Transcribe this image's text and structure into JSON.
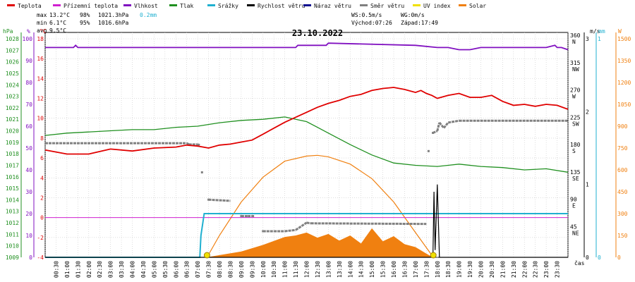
{
  "legend": [
    {
      "label": "Teplota",
      "color": "#e00000"
    },
    {
      "label": "Přízemní teplota",
      "color": "#d020d0"
    },
    {
      "label": "Vlhkost",
      "color": "#8010c0"
    },
    {
      "label": "Tlak",
      "color": "#209020"
    },
    {
      "label": "Srážky",
      "color": "#20b0d0"
    },
    {
      "label": "Rychlost větru",
      "color": "#000000"
    },
    {
      "label": "Náraz větru",
      "color": "#101090"
    },
    {
      "label": "Směr větru",
      "color": "#808080"
    },
    {
      "label": "UV index",
      "color": "#f0e000"
    },
    {
      "label": "Solar",
      "color": "#f08010"
    }
  ],
  "stats": {
    "max": {
      "label": "max",
      "temp": "13.2°C",
      "hum": "98%",
      "press": "1021.3hPa",
      "rain": "0.2mm"
    },
    "min": {
      "label": "min",
      "temp": "6.1°C",
      "hum": "95%",
      "press": "1016.6hPa"
    },
    "avg": {
      "label": "avg",
      "temp": "9.5°C"
    }
  },
  "wind_info": {
    "ws": "WS:0.5m/s",
    "wg": "WG:0m/s",
    "sunrise": "Východ:07:26",
    "sunset": "Západ:17:49"
  },
  "date": "23.10.2022",
  "axes": {
    "hpa_title": "hPa",
    "pct_title": "%",
    "c_title": "°C",
    "ms_title": "m/s",
    "mm_title": "mm",
    "w_title": "W",
    "cas_label": "čas",
    "hpa_ticks": [
      "1028",
      "1027",
      "1026",
      "1025",
      "1024",
      "1023",
      "1022",
      "1021",
      "1020",
      "1019",
      "1018",
      "1017",
      "1016",
      "1015",
      "1014",
      "1013",
      "1012",
      "1011",
      "1010",
      "1009"
    ],
    "pct_ticks": [
      "100",
      "90",
      "80",
      "70",
      "60",
      "50",
      "40",
      "30",
      "20",
      "10",
      "0"
    ],
    "c_ticks": [
      "18",
      "16",
      "14",
      "12",
      "10",
      "8",
      "6",
      "4",
      "2",
      "0",
      "-2",
      "-4"
    ],
    "dir_ticks": [
      {
        "deg": 360,
        "label": "360",
        "dir": "N"
      },
      {
        "deg": 315,
        "label": "315",
        "dir": "NW"
      },
      {
        "deg": 270,
        "label": "270",
        "dir": "W"
      },
      {
        "deg": 225,
        "label": "225",
        "dir": "SW"
      },
      {
        "deg": 180,
        "label": "180",
        "dir": "S"
      },
      {
        "deg": 135,
        "label": "135",
        "dir": "SE"
      },
      {
        "deg": 90,
        "label": "90",
        "dir": "E"
      },
      {
        "deg": 45,
        "label": "45",
        "dir": "NE"
      }
    ],
    "ms_ticks": [
      "3",
      "2",
      "1",
      "0"
    ],
    "mm_ticks": [
      "1",
      "0"
    ],
    "w_ticks": [
      "1500",
      "1350",
      "1200",
      "1050",
      "900",
      "750",
      "600",
      "450",
      "300",
      "150",
      "0"
    ],
    "time_ticks": [
      "00:30",
      "01:00",
      "01:30",
      "02:00",
      "02:30",
      "03:00",
      "03:30",
      "04:00",
      "04:30",
      "05:00",
      "05:30",
      "06:00",
      "06:30",
      "07:00",
      "07:30",
      "08:00",
      "08:30",
      "09:00",
      "09:30",
      "10:00",
      "10:30",
      "11:00",
      "11:30",
      "12:00",
      "12:30",
      "13:00",
      "13:30",
      "14:00",
      "14:30",
      "15:00",
      "15:30",
      "16:00",
      "16:30",
      "17:00",
      "17:30",
      "18:00",
      "18:30",
      "19:00",
      "19:30",
      "20:00",
      "20:30",
      "21:00",
      "21:30",
      "22:00",
      "22:30",
      "23:00",
      "23:30"
    ]
  },
  "chart_data": {
    "type": "line",
    "title": "23.10.2022",
    "x_unit": "hour of day",
    "xlim": [
      0,
      24
    ],
    "series": [
      {
        "name": "Teplota",
        "unit": "°C",
        "color": "#e00000",
        "x": [
          0,
          1,
          2,
          3,
          4,
          5,
          6,
          6.5,
          7,
          7.5,
          8,
          8.5,
          9,
          9.5,
          10,
          10.5,
          11,
          11.5,
          12,
          12.5,
          13,
          13.5,
          14,
          14.5,
          15,
          15.5,
          16,
          16.5,
          17,
          17.25,
          17.5,
          17.75,
          18,
          18.5,
          19,
          19.5,
          20,
          20.5,
          21,
          21.5,
          22,
          22.5,
          23,
          23.5,
          24
        ],
        "y": [
          6.8,
          6.4,
          6.4,
          6.9,
          6.7,
          7.0,
          7.1,
          7.3,
          7.2,
          7.0,
          7.3,
          7.4,
          7.6,
          7.8,
          8.4,
          9.0,
          9.6,
          10.1,
          10.6,
          11.1,
          11.5,
          11.8,
          12.2,
          12.4,
          12.8,
          13.0,
          13.1,
          12.9,
          12.6,
          12.8,
          12.5,
          12.3,
          12.0,
          12.3,
          12.5,
          12.1,
          12.1,
          12.3,
          11.7,
          11.3,
          11.4,
          11.2,
          11.4,
          11.3,
          10.9
        ]
      },
      {
        "name": "Přízemní teplota",
        "unit": "°C",
        "color": "#d020d0",
        "x": [
          0,
          24
        ],
        "y": [
          0,
          0
        ]
      },
      {
        "name": "Vlhkost",
        "unit": "%",
        "color": "#8010c0",
        "x": [
          0,
          1.3,
          1.4,
          1.5,
          3,
          11.5,
          11.6,
          12,
          12.5,
          12.9,
          13,
          17,
          18,
          18.5,
          19,
          19.5,
          20,
          20.5,
          21,
          22,
          23,
          23.4,
          23.5,
          23.7,
          24
        ],
        "y": [
          96,
          96,
          97,
          96,
          96,
          96,
          97,
          97,
          97,
          97,
          98,
          97,
          96,
          96,
          95,
          95,
          96,
          96,
          96,
          96,
          96,
          97,
          96,
          96,
          95
        ]
      },
      {
        "name": "Tlak",
        "unit": "hPa",
        "color": "#209020",
        "x": [
          0,
          1,
          2,
          3,
          4,
          5,
          6,
          7,
          8,
          9,
          10,
          11,
          12,
          12.5,
          13,
          14,
          15,
          16,
          17,
          18,
          19,
          20,
          21,
          22,
          23,
          24
        ],
        "y": [
          1019.6,
          1019.8,
          1019.9,
          1020.0,
          1020.1,
          1020.1,
          1020.3,
          1020.4,
          1020.7,
          1020.9,
          1021.0,
          1021.2,
          1020.8,
          1020.3,
          1019.8,
          1018.8,
          1017.9,
          1017.2,
          1017.0,
          1016.9,
          1017.1,
          1016.9,
          1016.8,
          1016.6,
          1016.7,
          1016.4
        ]
      },
      {
        "name": "Srážky",
        "unit": "mm",
        "color": "#20b0d0",
        "x": [
          0,
          7.1,
          7.15,
          7.3,
          24
        ],
        "y": [
          0,
          0,
          0.1,
          0.2,
          0.2
        ]
      },
      {
        "name": "Rychlost větru",
        "unit": "m/s",
        "color": "#000000",
        "x": [
          0,
          17.8,
          17.85,
          17.9,
          18.0,
          18.1,
          18.2,
          24
        ],
        "y": [
          0,
          0,
          0.9,
          0.1,
          1.0,
          0,
          0,
          0
        ]
      },
      {
        "name": "Směr větru",
        "unit": "°",
        "color": "#808080",
        "x": [
          0,
          6.5,
          6.6,
          7,
          7.1,
          7.2,
          7.5,
          8.5,
          9,
          9.3,
          9.6,
          10,
          10.5,
          11,
          11.5,
          12,
          12.2,
          17.5,
          17.6,
          17.8,
          18,
          18.1,
          18.3,
          18.5,
          19,
          24
        ],
        "y": [
          188,
          188,
          186,
          186,
          185,
          140,
          95,
          93,
          68,
          68,
          68,
          43,
          43,
          43,
          45,
          57,
          56,
          55,
          175,
          205,
          208,
          222,
          213,
          222,
          225,
          225
        ]
      },
      {
        "name": "Solar",
        "unit": "W",
        "color": "#f08010",
        "x": [
          7.4,
          8,
          9,
          10,
          11,
          11.5,
          12,
          12.5,
          13,
          13.5,
          14,
          14.5,
          15,
          15.5,
          16,
          16.5,
          17,
          17.5,
          17.8
        ],
        "y": [
          0,
          15,
          40,
          85,
          140,
          150,
          170,
          135,
          160,
          115,
          150,
          95,
          200,
          110,
          145,
          90,
          70,
          25,
          0
        ]
      },
      {
        "name": "Solar (theoretical)",
        "unit": "W",
        "color": "#f08010",
        "x": [
          7.43,
          8,
          9,
          10,
          11,
          12,
          12.5,
          13,
          14,
          15,
          16,
          17,
          17.82
        ],
        "y": [
          0,
          150,
          380,
          550,
          660,
          695,
          700,
          690,
          640,
          540,
          380,
          170,
          0
        ]
      }
    ],
    "wind_direction_axis": [
      0,
      360
    ],
    "ylim_temp": [
      -4,
      18
    ],
    "ylim_pressure": [
      1009,
      1028
    ],
    "ylim_humidity": [
      0,
      100
    ],
    "ylim_solar": [
      0,
      1500
    ],
    "ylim_wind": [
      0,
      3
    ],
    "ylim_rain": [
      0,
      1
    ]
  }
}
